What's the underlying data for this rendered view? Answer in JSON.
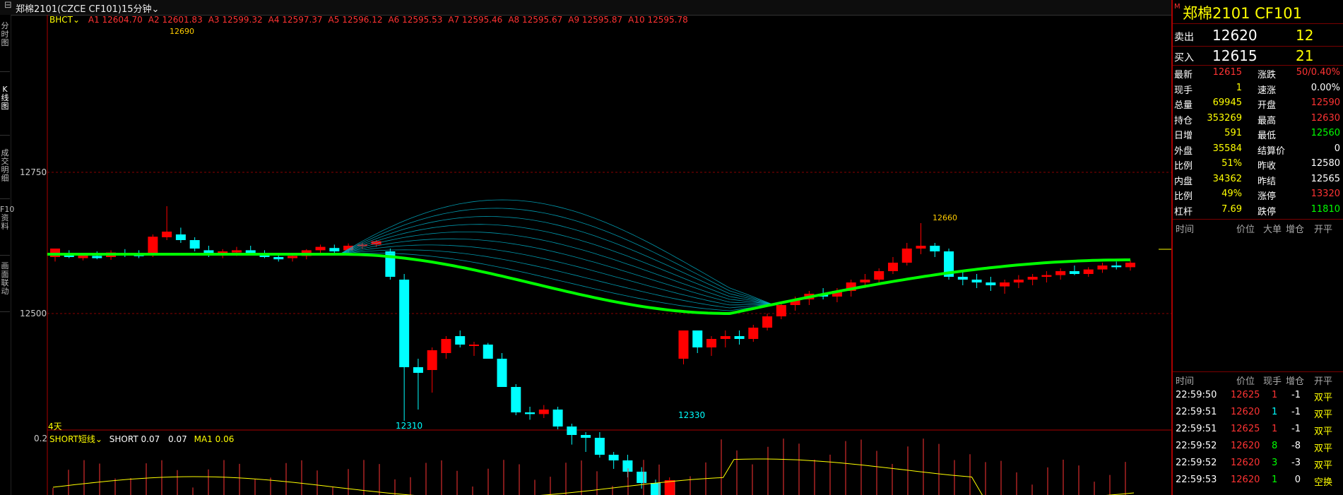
{
  "titlebar": {
    "instrument": "郑棉2101(CZCE CF101)",
    "period": "15分钟",
    "menu_icon": "chevron-down-icon"
  },
  "left_tabs": [
    "分时图",
    "K线图",
    "成交明细",
    "F10资料",
    "画面联动"
  ],
  "indicator": {
    "name": "BHCT",
    "items": [
      {
        "label": "A1",
        "value": "12604.70"
      },
      {
        "label": "A2",
        "value": "12601.83"
      },
      {
        "label": "A3",
        "value": "12599.32"
      },
      {
        "label": "A4",
        "value": "12597.37"
      },
      {
        "label": "A5",
        "value": "12596.12"
      },
      {
        "label": "A6",
        "value": "12595.53"
      },
      {
        "label": "A7",
        "value": "12595.46"
      },
      {
        "label": "A8",
        "value": "12595.67"
      },
      {
        "label": "A9",
        "value": "12595.87"
      },
      {
        "label": "A10",
        "value": "12595.78"
      }
    ]
  },
  "axis": {
    "price_ticks": [
      "12750",
      "12500"
    ],
    "sub_tick": "0.2",
    "days_label": "4天"
  },
  "annotations": {
    "high_left": "12690",
    "low_main": "12310",
    "low_right": "12330",
    "high_right": "12660"
  },
  "sub_indicator": {
    "name": "SHORT短线",
    "short_label": "SHORT",
    "short_value": "0.07",
    "extra_value": "0.07",
    "ma_label": "MA1",
    "ma_value": "0.06"
  },
  "panel": {
    "title": "郑棉2101  CF101",
    "sell": {
      "label": "卖出",
      "price": "12620",
      "vol": "12"
    },
    "buy": {
      "label": "买入",
      "price": "12615",
      "vol": "21"
    },
    "stats": [
      {
        "l1": "最新",
        "v1": "12615",
        "c1": "#ff3333",
        "l2": "涨跌",
        "v2": "50/0.40%",
        "c2": "#ff3333"
      },
      {
        "l1": "现手",
        "v1": "1",
        "c1": "#ffff00",
        "l2": "速涨",
        "v2": "0.00%",
        "c2": "#ffffff"
      },
      {
        "l1": "总量",
        "v1": "69945",
        "c1": "#ffff00",
        "l2": "开盘",
        "v2": "12590",
        "c2": "#ff3333"
      },
      {
        "l1": "持仓",
        "v1": "353269",
        "c1": "#ffff00",
        "l2": "最高",
        "v2": "12630",
        "c2": "#ff3333"
      },
      {
        "l1": "日增",
        "v1": "591",
        "c1": "#ffff00",
        "l2": "最低",
        "v2": "12560",
        "c2": "#00ff00"
      },
      {
        "l1": "外盘",
        "v1": "35584",
        "c1": "#ffff00",
        "l2": "结算价",
        "v2": "0",
        "c2": "#ffffff"
      },
      {
        "l1": "比例",
        "v1": "51%",
        "c1": "#ffff00",
        "l2": "昨收",
        "v2": "12580",
        "c2": "#ffffff"
      },
      {
        "l1": "内盘",
        "v1": "34362",
        "c1": "#ffff00",
        "l2": "昨结",
        "v2": "12565",
        "c2": "#ffffff"
      },
      {
        "l1": "比例",
        "v1": "49%",
        "c1": "#ffff00",
        "l2": "涨停",
        "v2": "13320",
        "c2": "#ff3333"
      },
      {
        "l1": "杠杆",
        "v1": "7.69",
        "c1": "#ffff00",
        "l2": "跌停",
        "v2": "11810",
        "c2": "#00ff00"
      }
    ],
    "top_headers": [
      "时间",
      "价位",
      "大单",
      "增仓",
      "开平"
    ],
    "tick_headers": [
      "时间",
      "价位",
      "现手",
      "增仓",
      "开平"
    ],
    "ticks": [
      {
        "time": "22:59:50",
        "price": "12625",
        "vol": "1",
        "vc": "#ff3333",
        "chg": "-1",
        "type": "双平"
      },
      {
        "time": "22:59:51",
        "price": "12620",
        "vol": "1",
        "vc": "#00ffff",
        "chg": "-1",
        "type": "双平"
      },
      {
        "time": "22:59:51",
        "price": "12625",
        "vol": "1",
        "vc": "#ff3333",
        "chg": "-1",
        "type": "双平"
      },
      {
        "time": "22:59:52",
        "price": "12620",
        "vol": "8",
        "vc": "#00ff00",
        "chg": "-8",
        "type": "双平"
      },
      {
        "time": "22:59:52",
        "price": "12620",
        "vol": "3",
        "vc": "#00ff00",
        "chg": "-3",
        "type": "双平"
      },
      {
        "time": "22:59:53",
        "price": "12620",
        "vol": "1",
        "vc": "#00ff00",
        "chg": "0",
        "type": "空换"
      }
    ]
  },
  "colors": {
    "up": "#ff0000",
    "down": "#00ffff",
    "ma_up": "#ff0000",
    "ma_down": "#00ff00",
    "fan": "#00bcd4"
  }
}
